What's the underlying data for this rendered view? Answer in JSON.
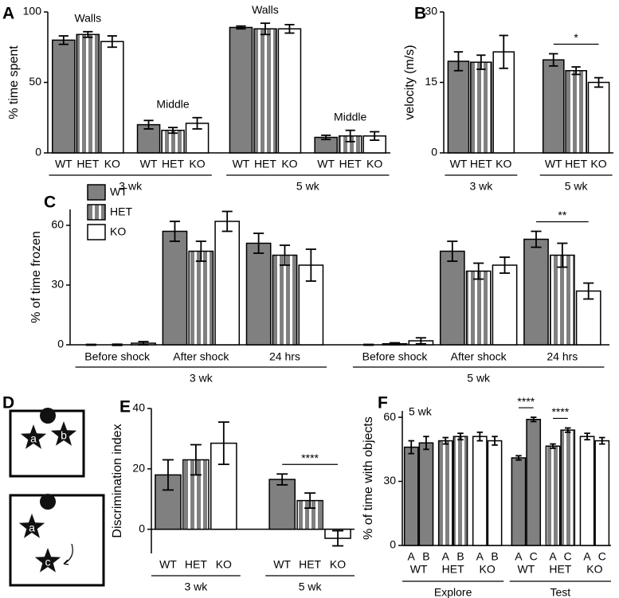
{
  "chart_data": [
    {
      "type": "bar",
      "panel": "A",
      "ylabel": "% time spent",
      "ylim": [
        0,
        100
      ],
      "yticks": [
        0,
        50,
        100
      ],
      "series": [
        {
          "name": "WT",
          "color": "#808080",
          "pattern": "solid"
        },
        {
          "name": "HET",
          "color": "#808080",
          "pattern": "stripes"
        },
        {
          "name": "KO",
          "color": "#ffffff",
          "pattern": "solid"
        }
      ],
      "bar_labels": "series",
      "cluster_label_position": "above",
      "groups": [
        {
          "name": "3 wk",
          "clusters": [
            {
              "label": "Walls",
              "values": [
                80,
                84,
                79
              ],
              "errors": [
                3,
                2,
                4
              ]
            },
            {
              "label": "Middle",
              "values": [
                20,
                16,
                21
              ],
              "errors": [
                3,
                2,
                4
              ]
            }
          ]
        },
        {
          "name": "5 wk",
          "clusters": [
            {
              "label": "Walls",
              "values": [
                89,
                88,
                88
              ],
              "errors": [
                1,
                4,
                3
              ]
            },
            {
              "label": "Middle",
              "values": [
                11,
                12,
                12
              ],
              "errors": [
                1.5,
                4,
                3
              ]
            }
          ]
        }
      ]
    },
    {
      "type": "bar",
      "panel": "B",
      "ylabel": "velocity (m/s)",
      "ylim": [
        0,
        30
      ],
      "yticks": [
        0,
        15,
        30
      ],
      "series": [
        {
          "name": "WT",
          "color": "#808080",
          "pattern": "solid"
        },
        {
          "name": "HET",
          "color": "#808080",
          "pattern": "stripes"
        },
        {
          "name": "KO",
          "color": "#ffffff",
          "pattern": "solid"
        }
      ],
      "bar_labels": "series",
      "groups": [
        {
          "name": "3 wk",
          "clusters": [
            {
              "values": [
                19.5,
                19.3,
                21.5
              ],
              "errors": [
                2,
                1.5,
                3.5
              ]
            }
          ]
        },
        {
          "name": "5 wk",
          "clusters": [
            {
              "values": [
                19.8,
                17.5,
                15
              ],
              "errors": [
                1.3,
                0.8,
                1
              ]
            }
          ]
        }
      ],
      "annotations": [
        {
          "text": "*",
          "group": 1,
          "cluster": 0,
          "bars": [
            0,
            2
          ]
        }
      ]
    },
    {
      "type": "bar",
      "panel": "C",
      "ylabel": "% of time frozen",
      "ylim": [
        0,
        68
      ],
      "yticks": [
        0,
        30,
        60
      ],
      "series": [
        {
          "name": "WT",
          "color": "#808080",
          "pattern": "solid"
        },
        {
          "name": "HET",
          "color": "#808080",
          "pattern": "stripes"
        },
        {
          "name": "KO",
          "color": "#ffffff",
          "pattern": "solid"
        }
      ],
      "legend": "upper left",
      "cluster_label_position": "below",
      "groups": [
        {
          "name": "3 wk",
          "clusters": [
            {
              "label": "Before shock",
              "values": [
                0,
                0,
                0.8
              ],
              "errors": [
                0.2,
                0.3,
                0.8
              ]
            },
            {
              "label": "After shock",
              "values": [
                57,
                47,
                62
              ],
              "errors": [
                5,
                5,
                5
              ]
            },
            {
              "label": "24 hrs",
              "values": [
                51,
                45,
                40
              ],
              "errors": [
                5,
                5,
                8
              ]
            }
          ]
        },
        {
          "name": "5 wk",
          "clusters": [
            {
              "label": "Before shock",
              "values": [
                0,
                0.5,
                2
              ],
              "errors": [
                0.2,
                0.5,
                1.5
              ]
            },
            {
              "label": "After shock",
              "values": [
                47,
                37,
                40
              ],
              "errors": [
                5,
                4,
                4
              ]
            },
            {
              "label": "24 hrs",
              "values": [
                53,
                45,
                27
              ],
              "errors": [
                4,
                6,
                4
              ]
            }
          ]
        }
      ],
      "annotations": [
        {
          "text": "**",
          "group": 1,
          "cluster": 2,
          "bars": [
            0,
            2
          ]
        }
      ]
    },
    {
      "type": "diagram",
      "panel": "D",
      "top_labels": [
        "a",
        "b"
      ],
      "bottom_labels": [
        "a",
        "c"
      ]
    },
    {
      "type": "bar",
      "panel": "E",
      "ylabel": "Discrimination index",
      "ylim": [
        -8,
        40
      ],
      "yticks": [
        0,
        20,
        40
      ],
      "series": [
        {
          "name": "WT",
          "color": "#808080",
          "pattern": "solid"
        },
        {
          "name": "HET",
          "color": "#808080",
          "pattern": "stripes"
        },
        {
          "name": "KO",
          "color": "#ffffff",
          "pattern": "solid"
        }
      ],
      "bar_labels": "series",
      "groups": [
        {
          "name": "3 wk",
          "clusters": [
            {
              "values": [
                18,
                23,
                28.5
              ],
              "errors": [
                5,
                5,
                7
              ]
            }
          ]
        },
        {
          "name": "5 wk",
          "clusters": [
            {
              "values": [
                16.5,
                9.5,
                -3
              ],
              "errors": [
                1.8,
                2.5,
                2.5
              ]
            }
          ]
        }
      ],
      "annotations": [
        {
          "text": "****",
          "group": 1,
          "cluster": 0,
          "bars": [
            0,
            2
          ]
        }
      ]
    },
    {
      "type": "bar",
      "panel": "F",
      "ylabel": "% of time with objects",
      "inset_label": "5 wk",
      "ylim": [
        0,
        63
      ],
      "yticks": [
        0,
        30,
        60
      ],
      "series": [
        {
          "name": "WT",
          "color": "#808080",
          "pattern": "solid"
        },
        {
          "name": "HET",
          "color": "#808080",
          "pattern": "stripes"
        },
        {
          "name": "KO",
          "color": "#ffffff",
          "pattern": "solid"
        }
      ],
      "color_by": "cluster",
      "groups": [
        {
          "name": "Explore",
          "clusters": [
            {
              "bar_labels": [
                "A",
                "B"
              ],
              "values": [
                46,
                48
              ],
              "errors": [
                3,
                3
              ]
            },
            {
              "bar_labels": [
                "A",
                "B"
              ],
              "values": [
                49,
                51
              ],
              "errors": [
                1.5,
                1.5
              ]
            },
            {
              "bar_labels": [
                "A",
                "B"
              ],
              "values": [
                51,
                49
              ],
              "errors": [
                2,
                2
              ]
            }
          ]
        },
        {
          "name": "Test",
          "clusters": [
            {
              "bar_labels": [
                "A",
                "C"
              ],
              "values": [
                41,
                59
              ],
              "errors": [
                1,
                1
              ]
            },
            {
              "bar_labels": [
                "A",
                "C"
              ],
              "values": [
                46.5,
                54
              ],
              "errors": [
                1,
                1
              ]
            },
            {
              "bar_labels": [
                "A",
                "C"
              ],
              "values": [
                51,
                49
              ],
              "errors": [
                1.5,
                1.5
              ]
            }
          ]
        }
      ],
      "annotations": [
        {
          "text": "****",
          "group": 1,
          "cluster": 0,
          "bars": [
            0,
            1
          ]
        },
        {
          "text": "****",
          "group": 1,
          "cluster": 1,
          "bars": [
            0,
            1
          ]
        }
      ]
    }
  ]
}
